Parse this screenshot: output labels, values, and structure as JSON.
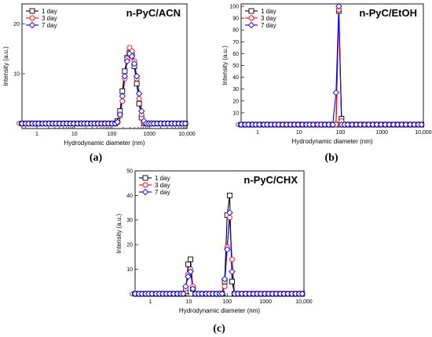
{
  "chart_data": [
    {
      "type": "line",
      "panel_label": "(a)",
      "title": "n-PyC/ACN",
      "xlabel": "Hydrodynamic diameter (nm)",
      "ylabel": "Intensity (a.u.)",
      "xscale": "log",
      "xlim": [
        0.4,
        10000
      ],
      "ylim": [
        -1,
        24
      ],
      "xticks": [
        {
          "value": 1,
          "label": "1"
        },
        {
          "value": 10,
          "label": "10"
        },
        {
          "value": 100,
          "label": "100"
        },
        {
          "value": 1000,
          "label": "1000"
        },
        {
          "value": 10000,
          "label": "10,000"
        }
      ],
      "yticks": [
        {
          "value": 0,
          "label": "0"
        },
        {
          "value": 10,
          "label": "10"
        },
        {
          "value": 20,
          "label": "20"
        }
      ],
      "legend_position": "top-left",
      "series": [
        {
          "name": "1 day",
          "color": "#000000",
          "marker": "square",
          "x": [
            0.4,
            0.5,
            0.6,
            0.75,
            0.9,
            1.1,
            1.4,
            1.7,
            2.1,
            2.6,
            3.2,
            4,
            5,
            6.2,
            7.7,
            9.5,
            12,
            15,
            18,
            22,
            28,
            34,
            42,
            52,
            65,
            80,
            100,
            122,
            141,
            164,
            190,
            220,
            255,
            295,
            342,
            396,
            459,
            531,
            615,
            712,
            825,
            955,
            1110,
            1300,
            1600,
            2000,
            2500,
            3100,
            3900,
            4800,
            6000,
            7500,
            9000
          ],
          "y": [
            0,
            0,
            0,
            0,
            0,
            0,
            0,
            0,
            0,
            0,
            0,
            0,
            0,
            0,
            0,
            0,
            0,
            0,
            0,
            0,
            0,
            0,
            0,
            0,
            0,
            0,
            0,
            0,
            0.5,
            2.5,
            6.5,
            10.5,
            13.2,
            14.2,
            13.8,
            11.5,
            8,
            4,
            1.2,
            0,
            0,
            0,
            0,
            0,
            0,
            0,
            0,
            0,
            0,
            0,
            0,
            0,
            0
          ]
        },
        {
          "name": "3 day",
          "color": "#ff0000",
          "marker": "circle",
          "x": [
            0.4,
            0.5,
            0.6,
            0.75,
            0.9,
            1.1,
            1.4,
            1.7,
            2.1,
            2.6,
            3.2,
            4,
            5,
            6.2,
            7.7,
            9.5,
            12,
            15,
            18,
            22,
            28,
            34,
            42,
            52,
            65,
            80,
            100,
            122,
            141,
            164,
            190,
            220,
            255,
            295,
            342,
            396,
            459,
            531,
            615,
            712,
            825,
            955,
            1110,
            1300,
            1600,
            2000,
            2500,
            3100,
            3900,
            4800,
            6000,
            7500,
            9000
          ],
          "y": [
            0,
            0,
            0,
            0,
            0,
            0,
            0,
            0,
            0,
            0,
            0,
            0,
            0,
            0,
            0,
            0,
            0,
            0,
            0,
            0,
            0,
            0,
            0,
            0,
            0,
            0,
            0,
            0,
            0.2,
            1.5,
            4.5,
            9,
            13,
            15.2,
            14.5,
            12.5,
            9,
            5,
            1.8,
            0.2,
            0,
            0,
            0,
            0,
            0,
            0,
            0,
            0,
            0,
            0,
            0,
            0,
            0
          ]
        },
        {
          "name": "7 day",
          "color": "#0000ff",
          "marker": "diamond",
          "x": [
            0.4,
            0.5,
            0.6,
            0.75,
            0.9,
            1.1,
            1.4,
            1.7,
            2.1,
            2.6,
            3.2,
            4,
            5,
            6.2,
            7.7,
            9.5,
            12,
            15,
            18,
            22,
            28,
            34,
            42,
            52,
            65,
            80,
            100,
            122,
            141,
            164,
            190,
            220,
            255,
            295,
            342,
            396,
            459,
            531,
            615,
            712,
            825,
            955,
            1110,
            1300,
            1600,
            2000,
            2500,
            3100,
            3900,
            4800,
            6000,
            7500,
            9000
          ],
          "y": [
            0,
            0,
            0,
            0,
            0,
            0,
            0,
            0,
            0,
            0,
            0,
            0,
            0,
            0,
            0,
            0,
            0,
            0,
            0,
            0,
            0,
            0,
            0,
            0,
            0,
            0,
            0,
            0,
            0.3,
            1.8,
            5.5,
            9.5,
            12.5,
            14,
            13.5,
            12,
            9.5,
            6,
            2.5,
            0.5,
            0,
            0,
            0,
            0,
            0,
            0,
            0,
            0,
            0,
            0,
            0,
            0,
            0
          ]
        }
      ]
    },
    {
      "type": "line",
      "panel_label": "(b)",
      "title": "n-PyC/EtOH",
      "xlabel": "Hydrodynamic diameter (nm)",
      "ylabel": "Intensity (a.u.)",
      "xscale": "log",
      "xlim": [
        0.4,
        10000
      ],
      "ylim": [
        -2,
        102
      ],
      "xticks": [
        {
          "value": 1,
          "label": "1"
        },
        {
          "value": 10,
          "label": "10"
        },
        {
          "value": 100,
          "label": "100"
        },
        {
          "value": 1000,
          "label": "1000"
        },
        {
          "value": 10000,
          "label": "10,000"
        }
      ],
      "yticks": [
        {
          "value": 0,
          "label": "0"
        },
        {
          "value": 10,
          "label": "10"
        },
        {
          "value": 20,
          "label": "20"
        },
        {
          "value": 30,
          "label": "30"
        },
        {
          "value": 40,
          "label": "40"
        },
        {
          "value": 50,
          "label": "50"
        },
        {
          "value": 60,
          "label": "60"
        },
        {
          "value": 70,
          "label": "70"
        },
        {
          "value": 80,
          "label": "80"
        },
        {
          "value": 90,
          "label": "90"
        },
        {
          "value": 100,
          "label": "100"
        }
      ],
      "legend_position": "top-left",
      "series": [
        {
          "name": "1 day",
          "color": "#000000",
          "marker": "square",
          "x": [
            0.4,
            0.5,
            0.6,
            0.75,
            0.9,
            1.1,
            1.4,
            1.7,
            2.1,
            2.6,
            3.2,
            4,
            5,
            6.2,
            7.7,
            9.5,
            12,
            15,
            18,
            22,
            28,
            34,
            42,
            52,
            65,
            78,
            91,
            106,
            125,
            150,
            190,
            240,
            300,
            380,
            480,
            600,
            750,
            950,
            1200,
            1500,
            1900,
            2400,
            3000,
            3800,
            4800,
            6000,
            7500,
            9000
          ],
          "y": [
            0,
            0,
            0,
            0,
            0,
            0,
            0,
            0,
            0,
            0,
            0,
            0,
            0,
            0,
            0,
            0,
            0,
            0,
            0,
            0,
            0,
            0,
            0,
            0,
            0,
            0,
            96,
            5,
            0,
            0,
            0,
            0,
            0,
            0,
            0,
            0,
            0,
            0,
            0,
            0,
            0,
            0,
            0,
            0,
            0,
            0,
            0,
            0
          ]
        },
        {
          "name": "3 day",
          "color": "#ff0000",
          "marker": "circle",
          "x": [
            0.4,
            0.5,
            0.6,
            0.75,
            0.9,
            1.1,
            1.4,
            1.7,
            2.1,
            2.6,
            3.2,
            4,
            5,
            6.2,
            7.7,
            9.5,
            12,
            15,
            18,
            22,
            28,
            34,
            42,
            52,
            65,
            78,
            91,
            106,
            125,
            150,
            190,
            240,
            300,
            380,
            480,
            600,
            750,
            950,
            1200,
            1500,
            1900,
            2400,
            3000,
            3800,
            4800,
            6000,
            7500,
            9000
          ],
          "y": [
            0,
            0,
            0,
            0,
            0,
            0,
            0,
            0,
            0,
            0,
            0,
            0,
            0,
            0,
            0,
            0,
            0,
            0,
            0,
            0,
            0,
            0,
            0,
            0,
            0,
            0,
            97,
            3,
            0,
            0,
            0,
            0,
            0,
            0,
            0,
            0,
            0,
            0,
            0,
            0,
            0,
            0,
            0,
            0,
            0,
            0,
            0,
            0
          ]
        },
        {
          "name": "7 day",
          "color": "#0000ff",
          "marker": "diamond",
          "x": [
            0.4,
            0.5,
            0.6,
            0.75,
            0.9,
            1.1,
            1.4,
            1.7,
            2.1,
            2.6,
            3.2,
            4,
            5,
            6.2,
            7.7,
            9.5,
            12,
            15,
            18,
            22,
            28,
            34,
            42,
            52,
            65,
            78,
            91,
            106,
            125,
            150,
            190,
            240,
            300,
            380,
            480,
            600,
            750,
            950,
            1200,
            1500,
            1900,
            2400,
            3000,
            3800,
            4800,
            6000,
            7500,
            9000
          ],
          "y": [
            0,
            0,
            0,
            0,
            0,
            0,
            0,
            0,
            0,
            0,
            0,
            0,
            0,
            0,
            0,
            0,
            0,
            0,
            0,
            0,
            0,
            0,
            0,
            0,
            0,
            27,
            100,
            0,
            0,
            0,
            0,
            0,
            0,
            0,
            0,
            0,
            0,
            0,
            0,
            0,
            0,
            0,
            0,
            0,
            0,
            0,
            0,
            0
          ]
        }
      ]
    },
    {
      "type": "line",
      "panel_label": "(c)",
      "title": "n-PyC/CHX",
      "xlabel": "Hydrodynamic diameter (nm)",
      "ylabel": "Intensity (a.u.)",
      "xscale": "log",
      "xlim": [
        0.4,
        10000
      ],
      "ylim": [
        -1,
        50
      ],
      "xticks": [
        {
          "value": 1,
          "label": "1"
        },
        {
          "value": 10,
          "label": "10"
        },
        {
          "value": 100,
          "label": "100"
        },
        {
          "value": 1000,
          "label": "1000"
        },
        {
          "value": 10000,
          "label": "10,000"
        }
      ],
      "yticks": [
        {
          "value": 0,
          "label": "0"
        },
        {
          "value": 10,
          "label": "10"
        },
        {
          "value": 20,
          "label": "20"
        },
        {
          "value": 30,
          "label": "30"
        },
        {
          "value": 40,
          "label": "40"
        },
        {
          "value": 50,
          "label": "50"
        }
      ],
      "legend_position": "top-left",
      "series": [
        {
          "name": "1 day",
          "color": "#000000",
          "marker": "square",
          "x": [
            0.4,
            0.5,
            0.6,
            0.75,
            0.9,
            1.1,
            1.4,
            1.7,
            2.1,
            2.6,
            3.2,
            4,
            5,
            6.2,
            7.2,
            8.3,
            9.6,
            11.1,
            12.8,
            14.8,
            18,
            22,
            28,
            34,
            42,
            52,
            64,
            74,
            86,
            100,
            116,
            134,
            155,
            190,
            240,
            300,
            380,
            480,
            600,
            750,
            950,
            1200,
            1500,
            1900,
            2400,
            3000,
            3800,
            4800,
            6000,
            7500,
            9000
          ],
          "y": [
            0,
            0,
            0,
            0,
            0,
            0,
            0,
            0,
            0,
            0,
            0,
            0,
            0,
            0,
            0,
            1,
            12,
            14,
            2,
            0,
            0,
            0,
            0,
            0,
            0,
            0,
            0,
            0,
            5,
            32,
            40,
            5,
            0,
            0,
            0,
            0,
            0,
            0,
            0,
            0,
            0,
            0,
            0,
            0,
            0,
            0,
            0,
            0,
            0,
            0,
            0
          ]
        },
        {
          "name": "3 day",
          "color": "#ff0000",
          "marker": "circle",
          "x": [
            0.4,
            0.5,
            0.6,
            0.75,
            0.9,
            1.1,
            1.4,
            1.7,
            2.1,
            2.6,
            3.2,
            4,
            5,
            6.2,
            7.2,
            8.3,
            9.6,
            11.1,
            12.8,
            14.8,
            18,
            22,
            28,
            34,
            42,
            52,
            64,
            74,
            86,
            100,
            116,
            134,
            155,
            190,
            240,
            300,
            380,
            480,
            600,
            750,
            950,
            1200,
            1500,
            1900,
            2400,
            3000,
            3800,
            4800,
            6000,
            7500,
            9000
          ],
          "y": [
            0,
            0,
            0,
            0,
            0,
            0,
            0,
            0,
            0,
            0,
            0,
            0,
            0,
            0,
            0,
            2,
            8,
            10,
            3,
            0,
            0,
            0,
            0,
            0,
            0,
            0,
            0,
            0,
            3,
            19,
            31,
            14,
            0,
            0,
            0,
            0,
            0,
            0,
            0,
            0,
            0,
            0,
            0,
            0,
            0,
            0,
            0,
            0,
            0,
            0,
            0
          ]
        },
        {
          "name": "7 day",
          "color": "#0000ff",
          "marker": "diamond",
          "x": [
            0.4,
            0.5,
            0.6,
            0.75,
            0.9,
            1.1,
            1.4,
            1.7,
            2.1,
            2.6,
            3.2,
            4,
            5,
            6.2,
            7.2,
            8.3,
            9.6,
            11.1,
            12.8,
            14.8,
            18,
            22,
            28,
            34,
            42,
            52,
            64,
            74,
            86,
            100,
            116,
            134,
            155,
            190,
            240,
            300,
            380,
            480,
            600,
            750,
            950,
            1200,
            1500,
            1900,
            2400,
            3000,
            3800,
            4800,
            6000,
            7500,
            9000
          ],
          "y": [
            0,
            0,
            0,
            0,
            0,
            0,
            0,
            0,
            0,
            0,
            0,
            0,
            0,
            0,
            0,
            3,
            7,
            9,
            2,
            0,
            0,
            0,
            0,
            0,
            0,
            0,
            0,
            0,
            6,
            18,
            33,
            9,
            0,
            0,
            0,
            0,
            0,
            0,
            0,
            0,
            0,
            0,
            0,
            0,
            0,
            0,
            0,
            0,
            0,
            0,
            0
          ]
        }
      ]
    }
  ]
}
